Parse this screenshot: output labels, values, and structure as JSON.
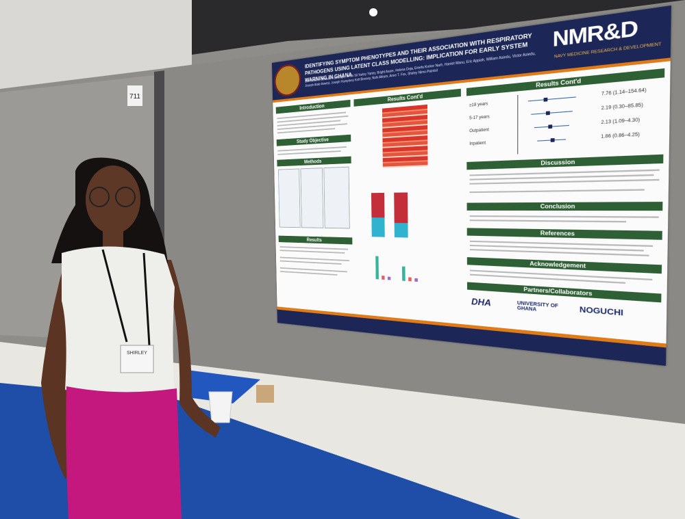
{
  "booth_number": "711",
  "poster": {
    "brand": {
      "name": "NMR&D",
      "tagline": "NAVY MEDICINE RESEARCH & DEVELOPMENT"
    },
    "title": "IDENTIFYING SYMPTOM PHENOTYPES AND THEIR ASSOCIATION WITH RESPIRATORY PATHOGENS USING LATENT CLASS MODELLING: IMPLICATION FOR EARLY SYSTEM WARNING IN GHANA",
    "authors": "Eric Behene, Selassie Kumordjie, Kevin Sil Yartey Yartey, Bright Asare, Helena Deja, Emefa Korkor Narh, Harriet Manu, Eric Appiah, William Asiedu, Victor Asiedu, Joseph Atale Asweyi, Joseph Humphrey Kofi Bonney, Nahi Attram, Anne T. Fox, Shirley Nimo-Paintsil",
    "sections": {
      "introduction": "Introduction",
      "study_objective": "Study Objective",
      "methods": "Methods",
      "results": "Results",
      "results_contd_1": "Results Cont'd",
      "results_contd_2": "Results Cont'd",
      "discussion": "Discussion",
      "conclusion": "Conclusion",
      "references": "References",
      "acknowledgement": "Acknowledgement",
      "partners": "Partners/Collaborators"
    },
    "forest_plot": {
      "rows": [
        {
          "label": "≥18 years",
          "estimate": "7.76 (1.14–154.64)"
        },
        {
          "label": "5-17 years",
          "estimate": "2.19 (0.30–85.85)"
        },
        {
          "label": "Outpatient",
          "estimate": "2.13 (1.09–4.30)"
        },
        {
          "label": "Inpatient",
          "estimate": "1.86 (0.86–4.25)"
        }
      ]
    },
    "partners": [
      "DHA",
      "UNIVERSITY OF GHANA",
      "NOGUCHI"
    ]
  },
  "badge": {
    "name": "SHIRLEY"
  }
}
